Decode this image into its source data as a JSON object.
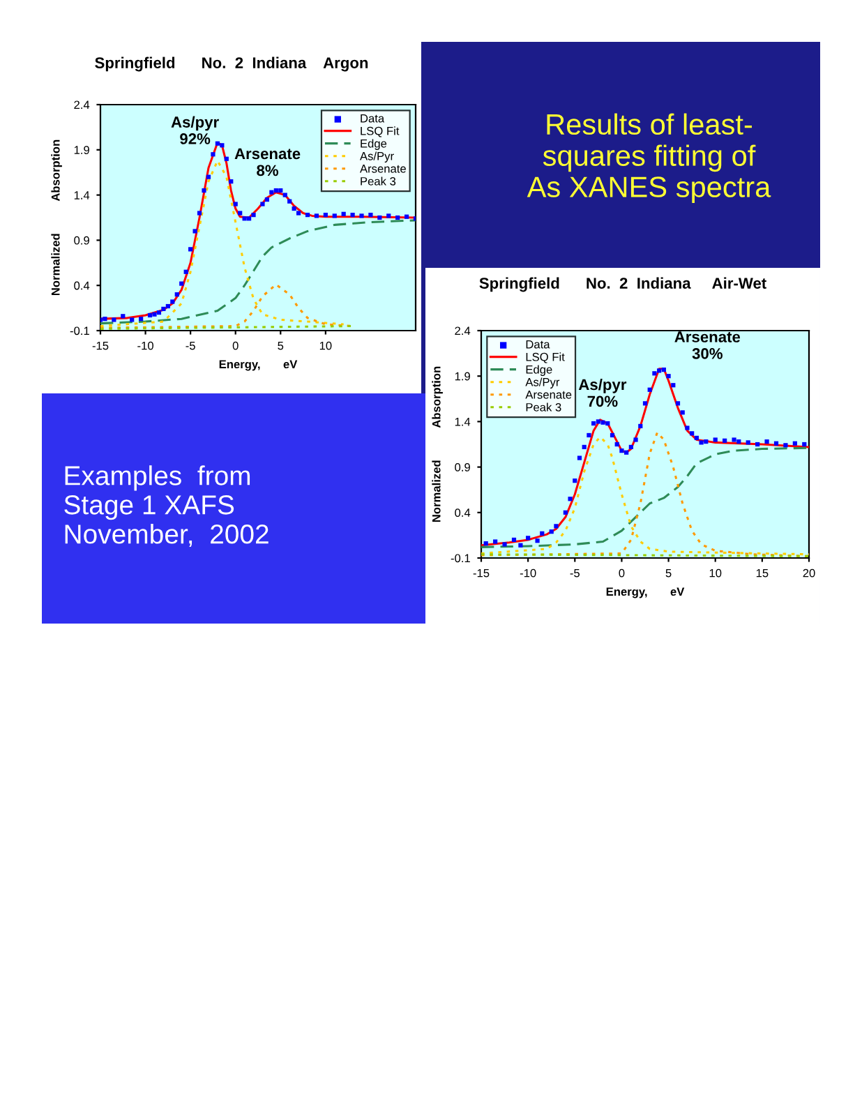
{
  "chart_data": [
    {
      "type": "line",
      "title": "Springfield      No.  2  Indiana    Argon",
      "xlabel": "Energy,       eV",
      "ylabel": "Normalized          Absorption",
      "xlim": [
        -15,
        20
      ],
      "xticks": [
        -15,
        -10,
        -5,
        0,
        5,
        10
      ],
      "ylim": [
        -0.1,
        2.4
      ],
      "yticks": [
        -0.1,
        0.4,
        0.9,
        1.4,
        1.9,
        2.4
      ],
      "legend": "top right",
      "annotations": [
        "As/pyr\n92%",
        "Arsenate\n8%"
      ],
      "series": [
        {
          "name": "Data",
          "type": "scatter",
          "marker": "square",
          "color": "#0000ff",
          "x": [
            -15,
            -14.5,
            -13.5,
            -12.5,
            -11.5,
            -10.5,
            -9.5,
            -9,
            -8.5,
            -8,
            -7.5,
            -7,
            -6.5,
            -6,
            -5.5,
            -5,
            -4.5,
            -4,
            -3.5,
            -3,
            -2.5,
            -2,
            -1.5,
            -1,
            -0.5,
            0,
            0.5,
            1,
            1.5,
            2,
            3,
            3.5,
            4,
            4.5,
            5,
            5.5,
            6,
            6.5,
            7,
            8,
            9,
            10,
            11,
            12,
            13,
            14,
            15,
            16,
            17,
            18,
            19,
            20
          ],
          "values": [
            0.02,
            0.03,
            0.02,
            0.06,
            0.02,
            0.03,
            0.07,
            0.08,
            0.1,
            0.14,
            0.17,
            0.22,
            0.3,
            0.42,
            0.55,
            0.8,
            1.0,
            1.2,
            1.45,
            1.6,
            1.85,
            1.97,
            1.95,
            1.8,
            1.55,
            1.3,
            1.2,
            1.14,
            1.14,
            1.18,
            1.3,
            1.35,
            1.43,
            1.45,
            1.45,
            1.4,
            1.33,
            1.25,
            1.2,
            1.18,
            1.17,
            1.18,
            1.17,
            1.19,
            1.18,
            1.17,
            1.18,
            1.15,
            1.17,
            1.15,
            1.16,
            1.14
          ]
        },
        {
          "name": "LSQ Fit",
          "type": "line",
          "line_style": "solid",
          "color": "#ff0000",
          "x": [
            -15,
            -12,
            -10,
            -8,
            -7,
            -6,
            -5,
            -4,
            -3,
            -2,
            -1.5,
            -1,
            -0.5,
            0,
            0.5,
            1.5,
            2.5,
            3.5,
            4.5,
            5.5,
            6.5,
            7.5,
            8.5,
            10,
            14,
            20
          ],
          "values": [
            0.03,
            0.04,
            0.07,
            0.13,
            0.2,
            0.35,
            0.65,
            1.15,
            1.7,
            1.98,
            1.95,
            1.75,
            1.45,
            1.25,
            1.16,
            1.15,
            1.25,
            1.37,
            1.43,
            1.4,
            1.28,
            1.2,
            1.17,
            1.16,
            1.16,
            1.15
          ]
        },
        {
          "name": "Edge",
          "type": "line",
          "line_style": "dashed",
          "color": "#2e8b57",
          "x": [
            -15,
            -10,
            -6,
            -2,
            0,
            1,
            2,
            3,
            4,
            6,
            8,
            11,
            15,
            20
          ],
          "values": [
            -0.02,
            0.0,
            0.03,
            0.12,
            0.26,
            0.4,
            0.56,
            0.72,
            0.82,
            0.92,
            1.0,
            1.07,
            1.1,
            1.12
          ]
        },
        {
          "name": "As/Pyr",
          "type": "line",
          "line_style": "dotted",
          "color": "#ffcc00",
          "x": [
            -15,
            -8,
            -6,
            -5,
            -4,
            -3,
            -2,
            -1,
            0,
            1,
            2,
            3,
            5,
            8,
            12
          ],
          "values": [
            -0.05,
            0.0,
            0.2,
            0.55,
            1.05,
            1.55,
            1.78,
            1.6,
            1.1,
            0.6,
            0.25,
            0.08,
            0.02,
            0.0,
            -0.03
          ]
        },
        {
          "name": "Arsenate",
          "type": "line",
          "line_style": "dotted",
          "color": "#ff9900",
          "x": [
            -15,
            0,
            1,
            2,
            3,
            4.5,
            6,
            7,
            8,
            10,
            13
          ],
          "values": [
            -0.07,
            -0.05,
            0.0,
            0.12,
            0.28,
            0.41,
            0.3,
            0.15,
            0.04,
            -0.03,
            -0.05
          ]
        },
        {
          "name": "Peak 3",
          "type": "line",
          "line_style": "dotted",
          "color": "#99cc00",
          "x": [
            -15,
            13
          ],
          "values": [
            -0.08,
            -0.05
          ]
        }
      ]
    },
    {
      "type": "other",
      "annotations": [
        "Results of least-\nsquares fitting of\nAs XANES spectra",
        "Examples  from\nStage 1 XAFS\nNovember,  2002"
      ]
    },
    {
      "type": "line",
      "title": "Springfield      No.  2  Indiana     Air-Wet",
      "xlabel": "Energy,       eV",
      "ylabel": "Normalized          Absorption",
      "xlim": [
        -15,
        20
      ],
      "xticks": [
        -15,
        -10,
        -5,
        0,
        5,
        10,
        15,
        20
      ],
      "ylim": [
        -0.1,
        2.4
      ],
      "yticks": [
        -0.1,
        0.4,
        0.9,
        1.4,
        1.9,
        2.4
      ],
      "legend": "top left",
      "annotations": [
        "Arsenate\n30%",
        "As/pyr\n70%"
      ],
      "series": [
        {
          "name": "Data",
          "type": "scatter",
          "marker": "square",
          "color": "#0000ff",
          "x": [
            -14.5,
            -13.5,
            -12.5,
            -11.5,
            -10.8,
            -10,
            -9,
            -8.5,
            -7.5,
            -7,
            -6,
            -5.5,
            -5,
            -4.5,
            -4,
            -3.5,
            -3,
            -2.5,
            -2,
            -1.5,
            -1,
            -0.5,
            0,
            0.5,
            1,
            1.5,
            2,
            2.5,
            3,
            3.5,
            4,
            4.5,
            5,
            5.5,
            6,
            6.5,
            7,
            7.5,
            8,
            8.5,
            9,
            10,
            11,
            12,
            12.5,
            13.5,
            14.5,
            15.5,
            16.5,
            17.5,
            18.5,
            19.5
          ],
          "values": [
            0.06,
            0.08,
            0.05,
            0.1,
            0.04,
            0.12,
            0.09,
            0.17,
            0.19,
            0.25,
            0.4,
            0.55,
            0.75,
            1.0,
            1.12,
            1.25,
            1.38,
            1.4,
            1.39,
            1.38,
            1.25,
            1.15,
            1.08,
            1.06,
            1.12,
            1.2,
            1.35,
            1.6,
            1.75,
            1.93,
            1.96,
            1.97,
            1.9,
            1.8,
            1.6,
            1.5,
            1.33,
            1.27,
            1.22,
            1.17,
            1.18,
            1.2,
            1.19,
            1.2,
            1.18,
            1.17,
            1.15,
            1.18,
            1.16,
            1.14,
            1.16,
            1.15
          ]
        },
        {
          "name": "LSQ Fit",
          "type": "line",
          "line_style": "solid",
          "color": "#ff0000",
          "x": [
            -15,
            -12,
            -10,
            -8,
            -7,
            -6,
            -5,
            -4,
            -3,
            -2.3,
            -1.5,
            -1,
            0,
            0.5,
            1,
            2,
            3,
            4,
            4.5,
            5,
            6,
            7,
            8,
            10,
            15,
            20
          ],
          "values": [
            0.04,
            0.07,
            0.1,
            0.16,
            0.22,
            0.35,
            0.6,
            0.95,
            1.3,
            1.42,
            1.38,
            1.28,
            1.08,
            1.06,
            1.1,
            1.35,
            1.7,
            1.98,
            1.98,
            1.85,
            1.55,
            1.3,
            1.2,
            1.17,
            1.15,
            1.12
          ]
        },
        {
          "name": "Edge",
          "type": "line",
          "line_style": "dashed",
          "color": "#2e8b57",
          "x": [
            -15,
            -10,
            -5,
            -2,
            0,
            1,
            2,
            3,
            4.5,
            6,
            7,
            8,
            10,
            12,
            15,
            20
          ],
          "values": [
            0.02,
            0.03,
            0.05,
            0.08,
            0.2,
            0.3,
            0.4,
            0.5,
            0.56,
            0.68,
            0.8,
            0.94,
            1.04,
            1.08,
            1.1,
            1.11
          ]
        },
        {
          "name": "As/Pyr",
          "type": "line",
          "line_style": "dotted",
          "color": "#ffcc00",
          "x": [
            -15,
            -8,
            -7,
            -6,
            -5,
            -4,
            -3,
            -2.3,
            -1.5,
            -1,
            0,
            1,
            2,
            3,
            5,
            20
          ],
          "values": [
            -0.05,
            0.0,
            0.07,
            0.2,
            0.45,
            0.85,
            1.15,
            1.23,
            1.15,
            1.0,
            0.6,
            0.25,
            0.08,
            0.0,
            -0.03,
            -0.06
          ]
        },
        {
          "name": "Arsenate",
          "type": "line",
          "line_style": "dotted",
          "color": "#ff9900",
          "x": [
            -15,
            0,
            1,
            2,
            3,
            3.8,
            4.5,
            5.5,
            6.5,
            7.5,
            8.5,
            10,
            14,
            20
          ],
          "values": [
            -0.07,
            -0.05,
            0.1,
            0.5,
            1.05,
            1.28,
            1.2,
            0.9,
            0.5,
            0.2,
            0.05,
            -0.02,
            -0.06,
            -0.08
          ]
        },
        {
          "name": "Peak 3",
          "type": "line",
          "line_style": "dotted",
          "color": "#99cc00",
          "x": [
            -15,
            20
          ],
          "values": [
            -0.06,
            -0.08
          ]
        }
      ]
    }
  ]
}
